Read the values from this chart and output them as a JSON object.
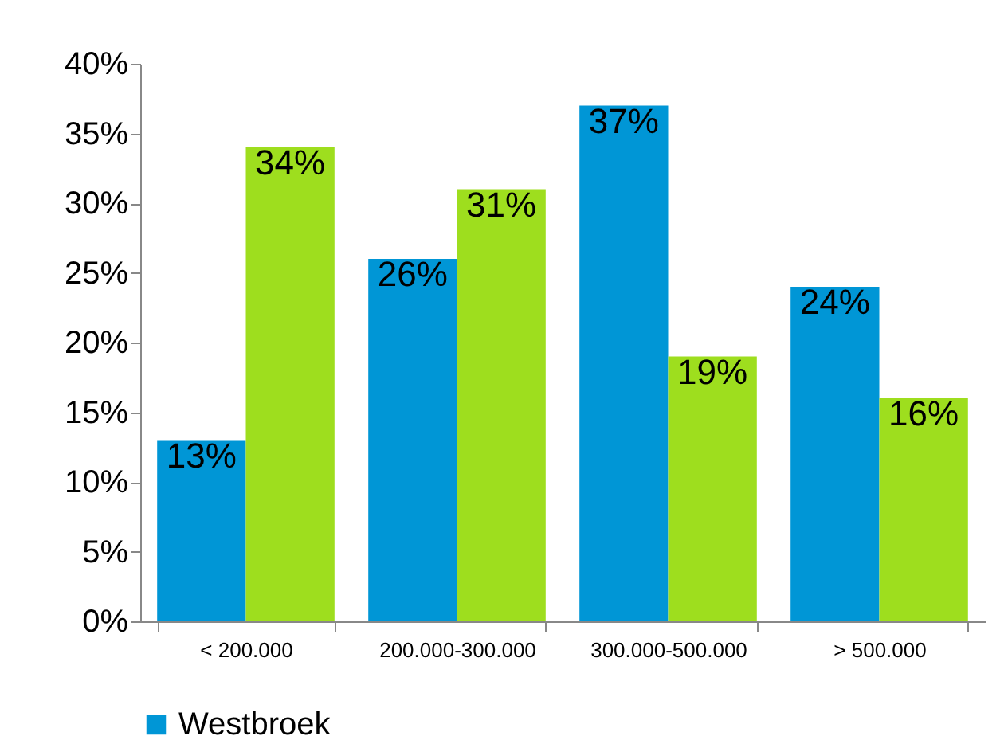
{
  "chart_data": {
    "type": "bar",
    "categories": [
      "< 200.000",
      "200.000-300.000",
      "300.000-500.000",
      "> 500.000"
    ],
    "series": [
      {
        "name": "Westbroek",
        "color": "#0096d6",
        "values": [
          13,
          26,
          37,
          24
        ],
        "value_labels": [
          "13%",
          "26%",
          "37%",
          "24%"
        ]
      },
      {
        "color": "#9ede1e",
        "values": [
          34,
          31,
          19,
          16
        ],
        "value_labels": [
          "34%",
          "31%",
          "19%",
          "16%"
        ]
      }
    ],
    "ylim": [
      0,
      40
    ],
    "yticks": [
      {
        "value": 0,
        "label": "0%"
      },
      {
        "value": 5,
        "label": "5%"
      },
      {
        "value": 10,
        "label": "10%"
      },
      {
        "value": 15,
        "label": "15%"
      },
      {
        "value": 20,
        "label": "20%"
      },
      {
        "value": 25,
        "label": "25%"
      },
      {
        "value": 30,
        "label": "30%"
      },
      {
        "value": 35,
        "label": "35%"
      },
      {
        "value": 40,
        "label": "40%"
      }
    ],
    "grid": false,
    "legend": "bottom"
  }
}
